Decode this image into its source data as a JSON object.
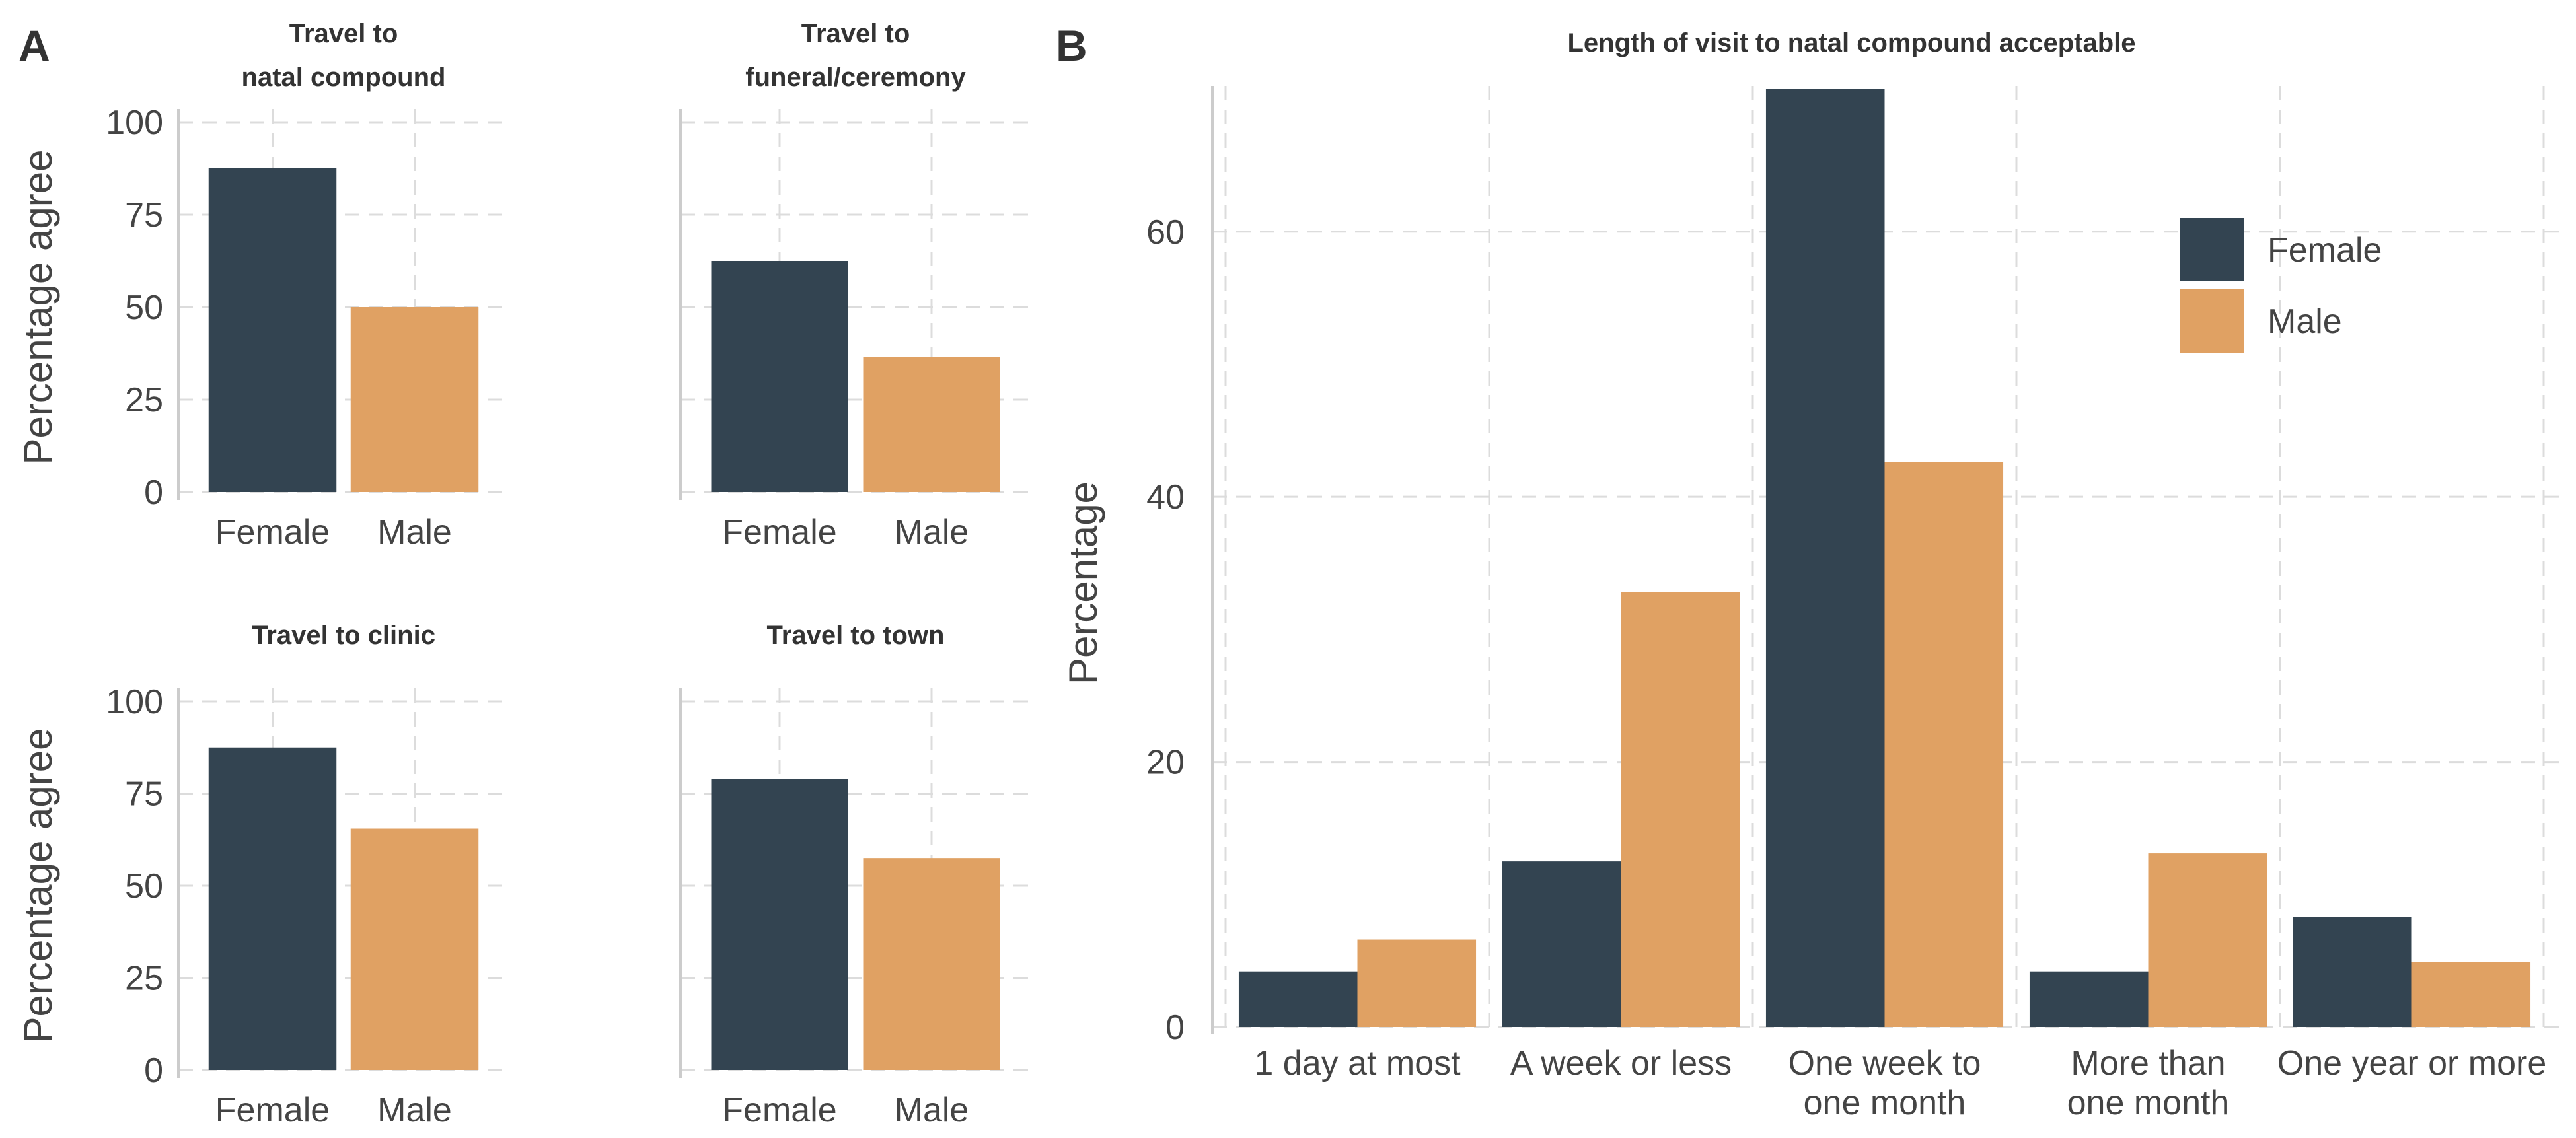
{
  "colors": {
    "female": "#334451",
    "male": "#E0A163"
  },
  "panel_labels": [
    "A",
    "B"
  ],
  "chart_data": [
    {
      "panel": "A",
      "type": "bar",
      "title": "Travel to natal compound",
      "title_lines": [
        "Travel to",
        "natal compound"
      ],
      "categories": [
        "Female",
        "Male"
      ],
      "values": [
        87.5,
        50
      ],
      "ylabel": "Percentage agree",
      "ylim": [
        0,
        100
      ],
      "yticks": [
        0,
        25,
        50,
        75,
        100
      ]
    },
    {
      "panel": "A",
      "type": "bar",
      "title": "Travel to funeral/ceremony",
      "title_lines": [
        "Travel to",
        "funeral/ceremony"
      ],
      "categories": [
        "Female",
        "Male"
      ],
      "values": [
        62.5,
        36.5
      ],
      "ylabel": "",
      "ylim": [
        0,
        100
      ],
      "yticks": []
    },
    {
      "panel": "A",
      "type": "bar",
      "title": "Travel to clinic",
      "title_lines": [
        "Travel to clinic"
      ],
      "categories": [
        "Female",
        "Male"
      ],
      "values": [
        87.5,
        65.5
      ],
      "ylabel": "Percentage agree",
      "ylim": [
        0,
        100
      ],
      "yticks": [
        0,
        25,
        50,
        75,
        100
      ]
    },
    {
      "panel": "A",
      "type": "bar",
      "title": "Travel to town",
      "title_lines": [
        "Travel to town"
      ],
      "categories": [
        "Female",
        "Male"
      ],
      "values": [
        79,
        57.5
      ],
      "ylabel": "",
      "ylim": [
        0,
        100
      ],
      "yticks": []
    },
    {
      "panel": "B",
      "type": "bar",
      "title": "Length of visit to natal compound acceptable",
      "categories": [
        "1 day at most",
        "A week or less",
        "One week to one month",
        "More than one month",
        "One year or more"
      ],
      "category_lines": [
        [
          "1 day at most"
        ],
        [
          "A week or less"
        ],
        [
          "One week to",
          "one month"
        ],
        [
          "More than",
          "one month"
        ],
        [
          "One year or more"
        ]
      ],
      "series": [
        {
          "name": "Female",
          "values": [
            4.2,
            12.5,
            70.8,
            4.2,
            8.3
          ]
        },
        {
          "name": "Male",
          "values": [
            6.6,
            32.8,
            42.6,
            13.1,
            4.9
          ]
        }
      ],
      "ylabel": "Percentage",
      "ylim": [
        0,
        71
      ],
      "yticks": [
        0,
        20,
        40,
        60
      ],
      "legend": {
        "position": "top-right",
        "entries": [
          "Female",
          "Male"
        ]
      }
    }
  ]
}
